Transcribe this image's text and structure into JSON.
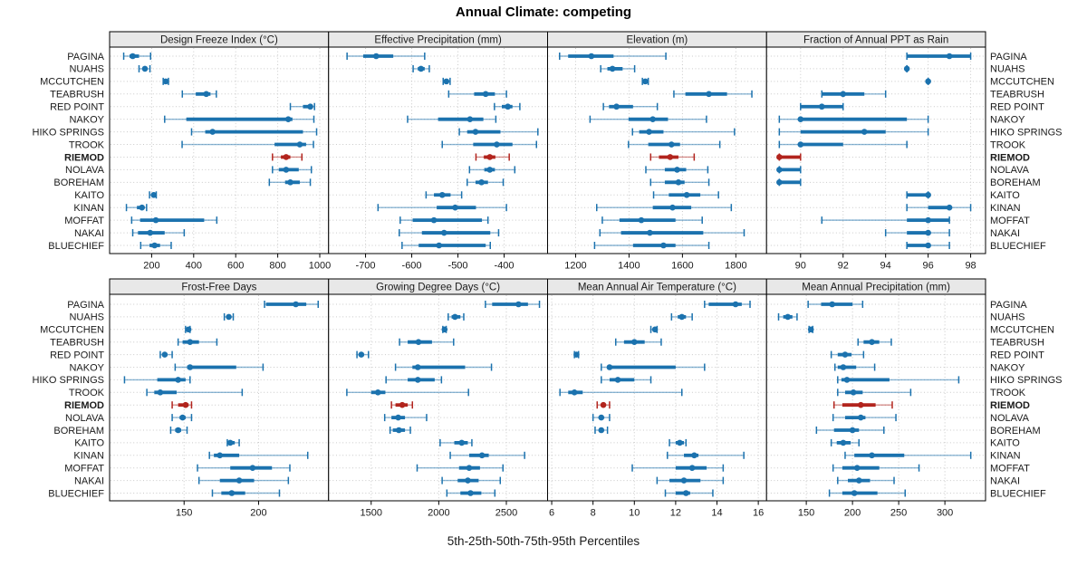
{
  "chart_data": {
    "type": "scatter",
    "subtype": "trellis-percentile-interval-dotplot",
    "title": "Annual Climate: competing",
    "xlabel": "5th-25th-50th-75th-95th Percentiles",
    "percentiles": [
      5,
      25,
      50,
      75,
      95
    ],
    "legend": "none",
    "grid": "dotted",
    "sites": [
      "PAGINA",
      "NUAHS",
      "MCCUTCHEN",
      "TEABRUSH",
      "RED POINT",
      "NAKOY",
      "HIKO SPRINGS",
      "TROOK",
      "RIEMOD",
      "NOLAVA",
      "BOREHAM",
      "KAITO",
      "KINAN",
      "MOFFAT",
      "NAKAI",
      "BLUECHIEF"
    ],
    "highlight_site": "RIEMOD",
    "colors": {
      "series": "#1b72ae",
      "series_light_opacity": 0.5,
      "highlight": "#b2241d",
      "grid": "#c9c9c9",
      "header_bg": "#e8e8e8",
      "frame": "#000000",
      "text": "#1a1a1a"
    },
    "panels": [
      {
        "title": "Design Freeze Index (°C)",
        "row": 0,
        "col": 0,
        "ticks": [
          200,
          400,
          600,
          800,
          1000
        ],
        "xlim": [
          0,
          1042
        ],
        "values": [
          [
            67,
            95,
            110,
            140,
            195
          ],
          [
            140,
            158,
            168,
            177,
            192
          ],
          [
            255,
            262,
            267,
            272,
            280
          ],
          [
            346,
            410,
            460,
            480,
            508
          ],
          [
            860,
            920,
            955,
            965,
            975
          ],
          [
            262,
            365,
            850,
            870,
            972
          ],
          [
            390,
            455,
            490,
            920,
            985
          ],
          [
            345,
            785,
            905,
            935,
            970
          ],
          [
            775,
            815,
            840,
            860,
            915
          ],
          [
            775,
            805,
            840,
            900,
            960
          ],
          [
            760,
            835,
            860,
            905,
            955
          ],
          [
            190,
            203,
            210,
            215,
            222
          ],
          [
            80,
            130,
            154,
            164,
            176
          ],
          [
            105,
            145,
            220,
            450,
            510
          ],
          [
            110,
            135,
            193,
            262,
            355
          ],
          [
            148,
            190,
            214,
            240,
            293
          ]
        ]
      },
      {
        "title": "Effective Precipitation (mm)",
        "row": 0,
        "col": 1,
        "ticks": [
          -700,
          -600,
          -500,
          -400
        ],
        "xlim": [
          -780,
          -306
        ],
        "values": [
          [
            -740,
            -705,
            -677,
            -640,
            -572
          ],
          [
            -597,
            -587,
            -580,
            -572,
            -562
          ],
          [
            -532,
            -527,
            -525,
            -522,
            -517
          ],
          [
            -520,
            -465,
            -440,
            -420,
            -395
          ],
          [
            -421,
            -405,
            -392,
            -382,
            -366
          ],
          [
            -609,
            -543,
            -474,
            -445,
            -418
          ],
          [
            -497,
            -480,
            -462,
            -408,
            -327
          ],
          [
            -534,
            -467,
            -416,
            -382,
            -330
          ],
          [
            -461,
            -444,
            -431,
            -419,
            -389
          ],
          [
            -475,
            -443,
            -431,
            -420,
            -377
          ],
          [
            -480,
            -462,
            -449,
            -435,
            -402
          ],
          [
            -569,
            -552,
            -534,
            -516,
            -492
          ],
          [
            -673,
            -546,
            -506,
            -461,
            -395
          ],
          [
            -625,
            -598,
            -552,
            -448,
            -435
          ],
          [
            -627,
            -578,
            -530,
            -430,
            -412
          ],
          [
            -621,
            -585,
            -541,
            -440,
            -430
          ]
        ]
      },
      {
        "title": "Elevation (m)",
        "row": 0,
        "col": 2,
        "ticks": [
          1200,
          1400,
          1600,
          1800
        ],
        "xlim": [
          1095,
          1915
        ],
        "values": [
          [
            1140,
            1172,
            1259,
            1342,
            1538
          ],
          [
            1294,
            1319,
            1338,
            1376,
            1421
          ],
          [
            1450,
            1456,
            1461,
            1466,
            1472
          ],
          [
            1568,
            1611,
            1699,
            1767,
            1860
          ],
          [
            1304,
            1325,
            1353,
            1415,
            1506
          ],
          [
            1254,
            1398,
            1489,
            1546,
            1690
          ],
          [
            1413,
            1438,
            1475,
            1529,
            1795
          ],
          [
            1398,
            1472,
            1559,
            1591,
            1740
          ],
          [
            1481,
            1512,
            1554,
            1585,
            1644
          ],
          [
            1463,
            1534,
            1580,
            1614,
            1695
          ],
          [
            1481,
            1534,
            1585,
            1608,
            1699
          ],
          [
            1492,
            1549,
            1616,
            1667,
            1735
          ],
          [
            1279,
            1489,
            1563,
            1633,
            1783
          ],
          [
            1300,
            1364,
            1446,
            1574,
            1674
          ],
          [
            1291,
            1370,
            1478,
            1678,
            1831
          ],
          [
            1271,
            1415,
            1529,
            1574,
            1699
          ]
        ]
      },
      {
        "title": "Fraction of Annual PPT as Rain",
        "row": 0,
        "col": 3,
        "ticks": [
          90,
          92,
          94,
          96,
          98
        ],
        "xlim": [
          88.4,
          98.7
        ],
        "values": [
          [
            95,
            95,
            97,
            98,
            98
          ],
          [
            95,
            95,
            95,
            95,
            95
          ],
          [
            96,
            96,
            96,
            96,
            96
          ],
          [
            91,
            91,
            92,
            93,
            94
          ],
          [
            90,
            90,
            91,
            92,
            92
          ],
          [
            89,
            90,
            90,
            95,
            96
          ],
          [
            89,
            90,
            93,
            94,
            96
          ],
          [
            89,
            90,
            90,
            92,
            95
          ],
          [
            89,
            89,
            89,
            90,
            90
          ],
          [
            89,
            89,
            89,
            90,
            90
          ],
          [
            89,
            89,
            89,
            90,
            90
          ],
          [
            95,
            95,
            96,
            96,
            96
          ],
          [
            95,
            96,
            97,
            97,
            98
          ],
          [
            91,
            95,
            96,
            97,
            97
          ],
          [
            94,
            95,
            96,
            96,
            97
          ],
          [
            95,
            95,
            96,
            96,
            97
          ]
        ]
      },
      {
        "title": "Frost-Free Days",
        "row": 1,
        "col": 0,
        "ticks": [
          150,
          200
        ],
        "xlim": [
          100,
          247
        ],
        "values": [
          [
            204,
            205,
            225,
            232,
            240
          ],
          [
            177,
            179,
            180,
            181,
            183
          ],
          [
            151,
            152,
            153,
            153,
            154
          ],
          [
            146,
            149,
            154,
            160,
            172
          ],
          [
            134,
            136,
            137,
            138,
            142
          ],
          [
            144,
            152,
            154,
            185,
            203
          ],
          [
            110,
            132,
            146,
            151,
            154
          ],
          [
            125,
            130,
            134,
            145,
            189
          ],
          [
            142,
            146,
            151,
            153,
            155
          ],
          [
            142,
            147,
            149,
            151,
            155
          ],
          [
            141,
            144,
            146,
            148,
            152
          ],
          [
            179,
            180,
            181,
            184,
            187
          ],
          [
            167,
            170,
            174,
            187,
            233
          ],
          [
            159,
            181,
            196,
            209,
            221
          ],
          [
            160,
            174,
            187,
            197,
            220
          ],
          [
            169,
            175,
            182,
            191,
            214
          ]
        ]
      },
      {
        "title": "Growing Degree Days (°C)",
        "row": 1,
        "col": 1,
        "ticks": [
          1500,
          2000,
          2500
        ],
        "xlim": [
          1185,
          2805
        ],
        "values": [
          [
            2345,
            2395,
            2590,
            2660,
            2745
          ],
          [
            2070,
            2095,
            2120,
            2160,
            2185
          ],
          [
            2030,
            2038,
            2043,
            2048,
            2055
          ],
          [
            1710,
            1770,
            1850,
            1950,
            2110
          ],
          [
            1395,
            1413,
            1427,
            1440,
            1480
          ],
          [
            1680,
            1805,
            1845,
            2195,
            2390
          ],
          [
            1610,
            1770,
            1845,
            1970,
            2020
          ],
          [
            1320,
            1500,
            1550,
            1605,
            2220
          ],
          [
            1650,
            1680,
            1730,
            1770,
            1805
          ],
          [
            1600,
            1650,
            1700,
            1750,
            1910
          ],
          [
            1640,
            1660,
            1705,
            1750,
            1790
          ],
          [
            2010,
            2115,
            2170,
            2215,
            2245
          ],
          [
            2085,
            2225,
            2320,
            2370,
            2635
          ],
          [
            1840,
            2150,
            2225,
            2305,
            2475
          ],
          [
            2025,
            2140,
            2215,
            2295,
            2455
          ],
          [
            2060,
            2160,
            2235,
            2315,
            2415
          ]
        ]
      },
      {
        "title": "Mean Annual Air Temperature (°C)",
        "row": 1,
        "col": 2,
        "ticks": [
          6,
          8,
          10,
          12,
          14,
          16
        ],
        "xlim": [
          5.8,
          16.4
        ],
        "values": [
          [
            13.4,
            13.6,
            14.9,
            15.2,
            15.6
          ],
          [
            11.8,
            12.1,
            12.3,
            12.5,
            12.8
          ],
          [
            10.8,
            10.9,
            11.0,
            11.0,
            11.1
          ],
          [
            9.1,
            9.5,
            10.0,
            10.5,
            11.3
          ],
          [
            7.1,
            7.2,
            7.2,
            7.3,
            7.3
          ],
          [
            8.4,
            8.7,
            8.8,
            12.0,
            13.4
          ],
          [
            8.4,
            8.8,
            9.2,
            10.0,
            10.8
          ],
          [
            6.4,
            6.8,
            7.1,
            7.5,
            12.3
          ],
          [
            8.2,
            8.4,
            8.5,
            8.6,
            8.8
          ],
          [
            8.0,
            8.3,
            8.4,
            8.5,
            8.8
          ],
          [
            8.1,
            8.3,
            8.4,
            8.5,
            8.7
          ],
          [
            11.7,
            12.0,
            12.2,
            12.4,
            12.5
          ],
          [
            11.6,
            12.4,
            12.9,
            13.1,
            15.3
          ],
          [
            9.9,
            12.0,
            12.8,
            13.5,
            14.3
          ],
          [
            11.1,
            11.7,
            12.4,
            13.2,
            14.3
          ],
          [
            11.5,
            12.0,
            12.5,
            12.7,
            13.8
          ]
        ]
      },
      {
        "title": "Mean Annual Precipitation (mm)",
        "row": 1,
        "col": 3,
        "ticks": [
          150,
          200,
          250,
          300
        ],
        "xlim": [
          107,
          344
        ],
        "values": [
          [
            152,
            166,
            178,
            200,
            211
          ],
          [
            120,
            125,
            130,
            135,
            140
          ],
          [
            153,
            154,
            155,
            156,
            157
          ],
          [
            206,
            212,
            221,
            229,
            242
          ],
          [
            177,
            184,
            192,
            199,
            212
          ],
          [
            181,
            184,
            190,
            204,
            224
          ],
          [
            184,
            188,
            194,
            240,
            315
          ],
          [
            184,
            192,
            201,
            211,
            263
          ],
          [
            180,
            189,
            209,
            225,
            243
          ],
          [
            179,
            192,
            209,
            214,
            247
          ],
          [
            161,
            180,
            200,
            207,
            234
          ],
          [
            177,
            183,
            190,
            198,
            207
          ],
          [
            192,
            202,
            221,
            256,
            328
          ],
          [
            179,
            189,
            205,
            229,
            272
          ],
          [
            184,
            195,
            207,
            219,
            245
          ],
          [
            175,
            189,
            202,
            227,
            257
          ]
        ]
      }
    ]
  }
}
